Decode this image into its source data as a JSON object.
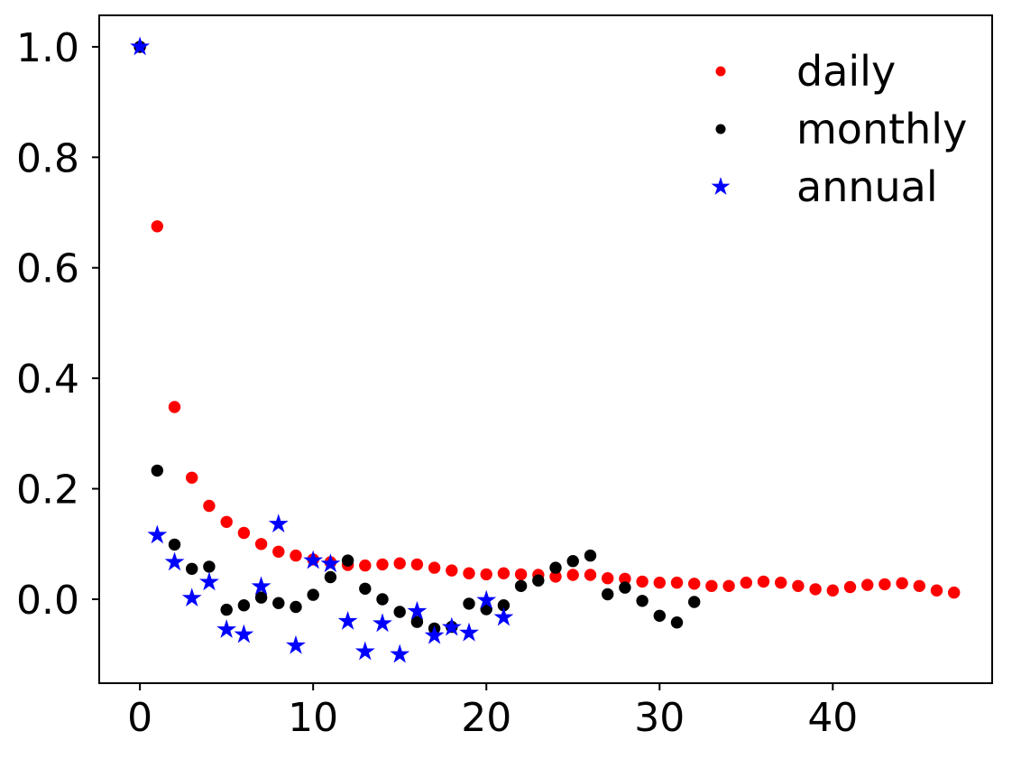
{
  "chart_data": {
    "type": "scatter",
    "title": "",
    "xlabel": "",
    "ylabel": "",
    "xlim": [
      -2.35,
      49.2
    ],
    "ylim": [
      -0.152,
      1.057
    ],
    "xticks": [
      0,
      10,
      20,
      30,
      40
    ],
    "xtick_labels": [
      "0",
      "10",
      "20",
      "30",
      "40"
    ],
    "yticks": [
      0.0,
      0.2,
      0.4,
      0.6,
      0.8,
      1.0
    ],
    "ytick_labels": [
      "0.0",
      "0.2",
      "0.4",
      "0.6",
      "0.8",
      "1.0"
    ],
    "grid": false,
    "axis_color": "#000000",
    "tick_label_color": "#000000",
    "legend": {
      "position": "upper right",
      "frame": false,
      "entries": [
        "daily",
        "monthly",
        "annual"
      ]
    },
    "series": [
      {
        "name": "daily",
        "marker": "circle",
        "color": "#ff0000",
        "x": [
          0,
          1,
          2,
          3,
          4,
          5,
          6,
          7,
          8,
          9,
          10,
          11,
          12,
          13,
          14,
          15,
          16,
          17,
          18,
          19,
          20,
          21,
          22,
          23,
          24,
          25,
          26,
          27,
          28,
          29,
          30,
          31,
          32,
          33,
          34,
          35,
          36,
          37,
          38,
          39,
          40,
          41,
          42,
          43,
          44,
          45,
          46,
          47
        ],
        "y": [
          1.0,
          0.675,
          0.348,
          0.22,
          0.169,
          0.14,
          0.12,
          0.1,
          0.086,
          0.079,
          0.072,
          0.067,
          0.062,
          0.061,
          0.063,
          0.065,
          0.063,
          0.057,
          0.052,
          0.047,
          0.045,
          0.047,
          0.045,
          0.044,
          0.041,
          0.044,
          0.044,
          0.038,
          0.037,
          0.032,
          0.03,
          0.03,
          0.028,
          0.024,
          0.024,
          0.03,
          0.032,
          0.03,
          0.024,
          0.018,
          0.016,
          0.022,
          0.026,
          0.027,
          0.029,
          0.024,
          0.016,
          0.012
        ]
      },
      {
        "name": "monthly",
        "marker": "circle",
        "color": "#000000",
        "x": [
          0,
          1,
          2,
          3,
          4,
          5,
          6,
          7,
          8,
          9,
          10,
          11,
          12,
          13,
          14,
          15,
          16,
          17,
          18,
          19,
          20,
          21,
          22,
          23,
          24,
          25,
          26,
          27,
          28,
          29,
          30,
          31,
          32
        ],
        "y": [
          1.0,
          0.233,
          0.099,
          0.055,
          0.059,
          -0.019,
          -0.011,
          0.003,
          -0.007,
          -0.014,
          0.008,
          0.04,
          0.07,
          0.019,
          0.0,
          -0.023,
          -0.041,
          -0.053,
          -0.05,
          -0.008,
          -0.018,
          -0.011,
          0.024,
          0.034,
          0.057,
          0.069,
          0.079,
          0.009,
          0.021,
          -0.003,
          -0.03,
          -0.042,
          -0.005
        ]
      },
      {
        "name": "annual",
        "marker": "star",
        "color": "#0000ff",
        "x": [
          0,
          1,
          2,
          3,
          4,
          5,
          6,
          7,
          8,
          9,
          10,
          11,
          12,
          13,
          14,
          15,
          16,
          17,
          18,
          19,
          20,
          21
        ],
        "y": [
          1.0,
          0.116,
          0.067,
          0.002,
          0.031,
          -0.055,
          -0.064,
          0.023,
          0.136,
          -0.084,
          0.07,
          0.064,
          -0.04,
          -0.095,
          -0.044,
          -0.1,
          -0.022,
          -0.066,
          -0.051,
          -0.061,
          -0.002,
          -0.033
        ]
      }
    ]
  }
}
